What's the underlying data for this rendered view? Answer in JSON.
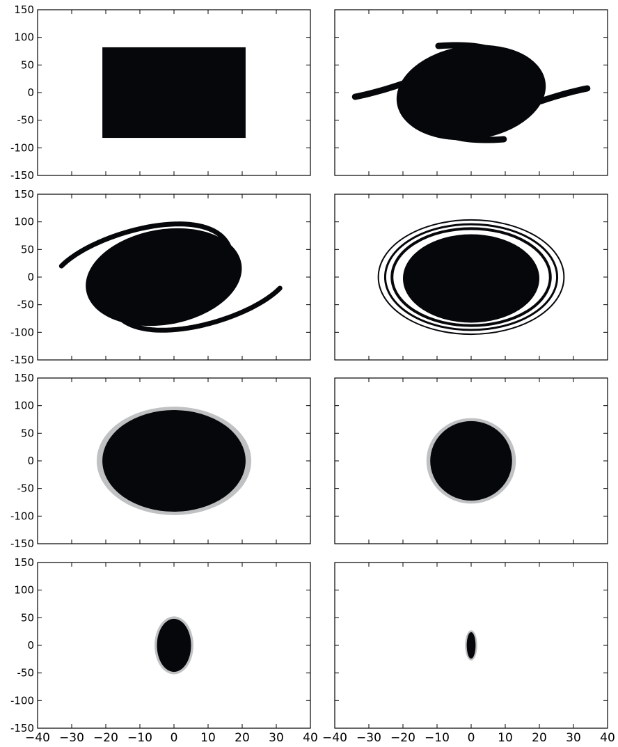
{
  "chart_data": {
    "type": "scatter",
    "layout": {
      "rows": 4,
      "cols": 2
    },
    "xlim": [
      -40,
      40
    ],
    "ylim": [
      -150,
      150
    ],
    "x_ticks": [
      -40,
      -30,
      -20,
      -10,
      0,
      10,
      20,
      30,
      40
    ],
    "y_ticks": [
      150,
      100,
      50,
      0,
      -50,
      -100,
      -150
    ],
    "x_ticks_labeled_on_bottom_row_only": true,
    "y_ticks_labeled_on_left_column_only": true,
    "point_color": "#05070a",
    "panels": [
      {
        "id": "p1",
        "shape": "rectangle",
        "x_extent": [
          -21,
          21
        ],
        "y_extent": [
          -82,
          82
        ]
      },
      {
        "id": "p2",
        "shape": "spiral-4-arm",
        "core_center": [
          0,
          0
        ],
        "core_rx": 22,
        "core_ry": 85
      },
      {
        "id": "p3",
        "shape": "spiral-2-arm",
        "core_center": [
          -3,
          0
        ],
        "core_rx": 22,
        "core_ry": 88
      },
      {
        "id": "p4",
        "shape": "ring-wound-ellipse",
        "core_center": [
          0,
          0
        ],
        "core_rx": 20,
        "core_ry": 80
      },
      {
        "id": "p5",
        "shape": "ellipse",
        "center": [
          0,
          0
        ],
        "rx": 21,
        "ry": 92
      },
      {
        "id": "p6",
        "shape": "ellipse",
        "center": [
          0,
          0
        ],
        "rx": 12,
        "ry": 72
      },
      {
        "id": "p7",
        "shape": "ellipse",
        "center": [
          0,
          0
        ],
        "rx": 5,
        "ry": 48
      },
      {
        "id": "p8",
        "shape": "ellipse",
        "center": [
          0,
          0
        ],
        "rx": 1.3,
        "ry": 24
      }
    ]
  }
}
